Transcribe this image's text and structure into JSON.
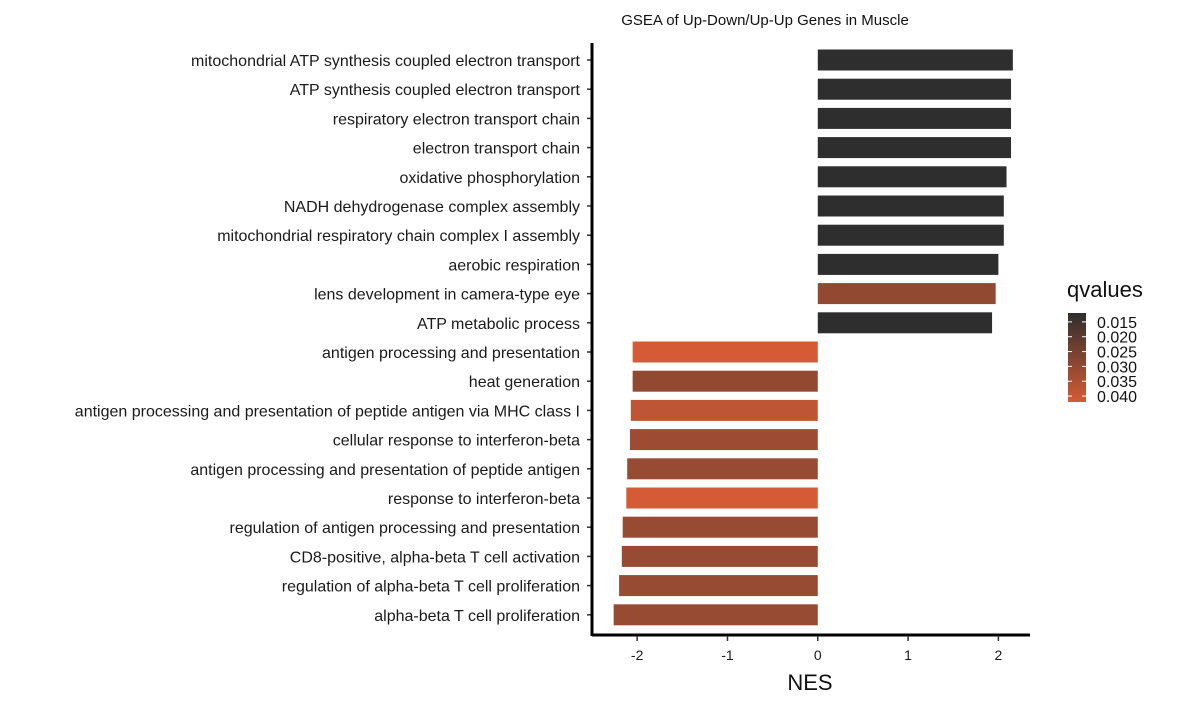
{
  "chart_data": {
    "type": "bar",
    "orientation": "horizontal",
    "title": "GSEA of Up-Down/Up-Up Genes in Muscle",
    "xlabel": "NES",
    "ylabel": "",
    "xlim": [
      -2.5,
      2.35
    ],
    "xticks": [
      -2,
      -1,
      0,
      1,
      2
    ],
    "xtick_labels": [
      "-2",
      "-1",
      "0",
      "1",
      "2"
    ],
    "grid": false,
    "categories": [
      "mitochondrial ATP synthesis coupled electron transport",
      "ATP synthesis coupled electron transport",
      "respiratory electron transport chain",
      "electron transport chain",
      "oxidative phosphorylation",
      "NADH dehydrogenase complex assembly",
      "mitochondrial respiratory chain complex I assembly",
      "aerobic respiration",
      "lens development in camera-type eye",
      "ATP metabolic process",
      "antigen processing and presentation",
      "heat generation",
      "antigen processing and presentation of peptide antigen via MHC class I",
      "cellular response to interferon-beta",
      "antigen processing and presentation of peptide antigen",
      "response to interferon-beta",
      "regulation of antigen processing and presentation",
      "CD8-positive, alpha-beta T cell activation",
      "regulation of alpha-beta T cell proliferation",
      "alpha-beta T cell proliferation"
    ],
    "values": [
      2.16,
      2.14,
      2.14,
      2.14,
      2.09,
      2.06,
      2.06,
      2.0,
      1.97,
      1.93,
      -2.05,
      -2.05,
      -2.07,
      -2.08,
      -2.11,
      -2.12,
      -2.16,
      -2.17,
      -2.2,
      -2.26
    ],
    "qvalues": [
      0.012,
      0.012,
      0.012,
      0.012,
      0.012,
      0.012,
      0.012,
      0.012,
      0.03,
      0.012,
      0.042,
      0.03,
      0.038,
      0.032,
      0.031,
      0.042,
      0.031,
      0.031,
      0.031,
      0.031
    ],
    "legend": {
      "title": "qvalues",
      "position": "right",
      "labels": [
        "0.015",
        "0.020",
        "0.025",
        "0.030",
        "0.035",
        "0.040"
      ],
      "range": [
        0.012,
        0.042
      ],
      "colors": [
        "#2e2e2e",
        "#d45b35"
      ]
    }
  }
}
